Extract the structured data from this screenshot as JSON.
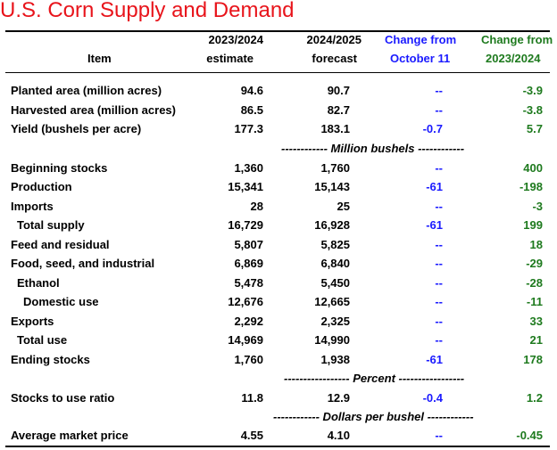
{
  "title": "U.S. Corn Supply and Demand",
  "colors": {
    "title": "#e8141b",
    "october_change": "#1a1aff",
    "annual_change": "#1e7a1e"
  },
  "header": {
    "item": "Item",
    "col1_line1": "2023/2024",
    "col1_line2": "estimate",
    "col2_line1": "2024/2025",
    "col2_line2": "forecast",
    "col3_line1": "Change from",
    "col3_line2": "October 11",
    "col4_line1": "Change from",
    "col4_line2": "2023/2024"
  },
  "rows": [
    {
      "item": "Planted area (million acres)",
      "v2023": "94.6",
      "v2024": "90.7",
      "chg_oct": "--",
      "chg_yr": "-3.9"
    },
    {
      "item": "Harvested area (million acres)",
      "v2023": "86.5",
      "v2024": "82.7",
      "chg_oct": "--",
      "chg_yr": "-3.8"
    },
    {
      "item": "Yield (bushels per acre)",
      "v2023": "177.3",
      "v2024": "183.1",
      "chg_oct": "-0.7",
      "chg_yr": "5.7"
    },
    {
      "item": "Beginning stocks",
      "v2023": "1,360",
      "v2024": "1,760",
      "chg_oct": "--",
      "chg_yr": "400"
    },
    {
      "item": "Production",
      "v2023": "15,341",
      "v2024": "15,143",
      "chg_oct": "-61",
      "chg_yr": "-198"
    },
    {
      "item": "Imports",
      "v2023": "28",
      "v2024": "25",
      "chg_oct": "--",
      "chg_yr": "-3"
    },
    {
      "item": "Total supply",
      "v2023": "16,729",
      "v2024": "16,928",
      "chg_oct": "-61",
      "chg_yr": "199"
    },
    {
      "item": "Feed and residual",
      "v2023": "5,807",
      "v2024": "5,825",
      "chg_oct": "--",
      "chg_yr": "18"
    },
    {
      "item": "Food, seed, and industrial",
      "v2023": "6,869",
      "v2024": "6,840",
      "chg_oct": "--",
      "chg_yr": "-29"
    },
    {
      "item": "Ethanol",
      "v2023": "5,478",
      "v2024": "5,450",
      "chg_oct": "--",
      "chg_yr": "-28"
    },
    {
      "item": "Domestic use",
      "v2023": "12,676",
      "v2024": "12,665",
      "chg_oct": "--",
      "chg_yr": "-11"
    },
    {
      "item": "Exports",
      "v2023": "2,292",
      "v2024": "2,325",
      "chg_oct": "--",
      "chg_yr": "33"
    },
    {
      "item": "Total use",
      "v2023": "14,969",
      "v2024": "14,990",
      "chg_oct": "--",
      "chg_yr": "21"
    },
    {
      "item": "Ending stocks",
      "v2023": "1,760",
      "v2024": "1,938",
      "chg_oct": "-61",
      "chg_yr": "178"
    },
    {
      "item": "Stocks to use ratio",
      "v2023": "11.8",
      "v2024": "12.9",
      "chg_oct": "-0.4",
      "chg_yr": "1.2"
    },
    {
      "item": "Average market price",
      "v2023": "4.55",
      "v2024": "4.10",
      "chg_oct": "--",
      "chg_yr": "-0.45"
    }
  ],
  "dividers": {
    "million_bushels": "------------ Million bushels ------------",
    "percent": "----------------- Percent -----------------",
    "dollars": "------------ Dollars per bushel ------------"
  }
}
